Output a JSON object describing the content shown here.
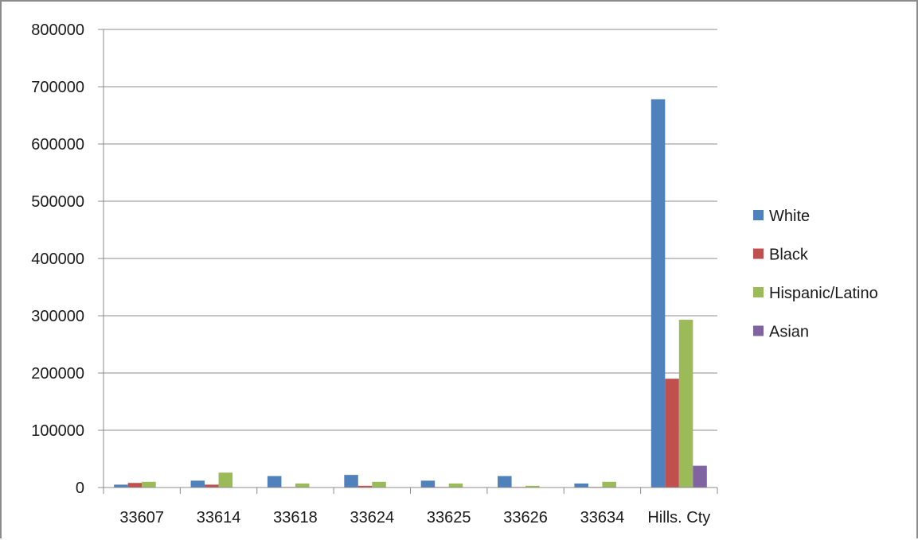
{
  "chart_data": {
    "type": "bar",
    "title": "",
    "xlabel": "",
    "ylabel": "",
    "categories": [
      "33607",
      "33614",
      "33618",
      "33624",
      "33625",
      "33626",
      "33634",
      "Hills. Cty"
    ],
    "ylim": [
      0,
      800000
    ],
    "yticks": [
      0,
      100000,
      200000,
      300000,
      400000,
      500000,
      600000,
      700000,
      800000
    ],
    "grid": true,
    "legend_position": "right",
    "series": [
      {
        "name": "White",
        "color": "#4f81bd",
        "values": [
          5000,
          12000,
          20000,
          22000,
          12000,
          20000,
          7000,
          678000
        ]
      },
      {
        "name": "Black",
        "color": "#c0504d",
        "values": [
          8000,
          5000,
          1000,
          3000,
          1000,
          1000,
          1000,
          190000
        ]
      },
      {
        "name": "Hispanic/Latino",
        "color": "#9bbb59",
        "values": [
          10000,
          26000,
          7000,
          10000,
          7000,
          3000,
          10000,
          293000
        ]
      },
      {
        "name": "Asian",
        "color": "#8064a2",
        "values": [
          0,
          0,
          0,
          0,
          0,
          0,
          0,
          38000
        ]
      }
    ]
  }
}
